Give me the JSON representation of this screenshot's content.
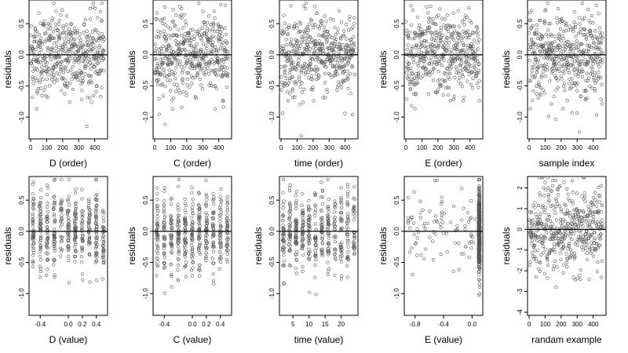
{
  "figure": {
    "background": "#ffffff",
    "point_color": "#555555",
    "axis_color": "#000000"
  },
  "chart_data": [
    {
      "type": "scatter",
      "id": "p0",
      "row": 0,
      "col": 0,
      "xlabel": "D (order)",
      "ylabel": "residuals",
      "xlim": [
        -10,
        480
      ],
      "ylim": [
        -1.35,
        0.88
      ],
      "xticks": [
        0,
        100,
        200,
        300,
        400
      ],
      "xtick_labels": [
        "0",
        "100",
        "200",
        "300",
        "400"
      ],
      "yticks": [
        0.5,
        0,
        -0.5,
        -1
      ],
      "ytick_labels": [
        "0.5",
        "0.0",
        "-0.5",
        "-1.0"
      ],
      "hline": 0,
      "n": 460,
      "x_kind": "index",
      "y_spread": 0.33,
      "points_note": "dense scatter of ~460 residuals around zero"
    },
    {
      "type": "scatter",
      "id": "p1",
      "row": 0,
      "col": 1,
      "xlabel": "C (order)",
      "ylabel": "residuals",
      "xlim": [
        -10,
        480
      ],
      "ylim": [
        -1.35,
        0.88
      ],
      "xticks": [
        0,
        100,
        200,
        300,
        400
      ],
      "xtick_labels": [
        "0",
        "100",
        "200",
        "300",
        "400"
      ],
      "yticks": [
        0.5,
        0,
        -0.5,
        -1
      ],
      "ytick_labels": [
        "0.5",
        "0.0",
        "-0.5",
        "-1.0"
      ],
      "hline": 0,
      "n": 460,
      "x_kind": "index",
      "y_spread": 0.33
    },
    {
      "type": "scatter",
      "id": "p2",
      "row": 0,
      "col": 2,
      "xlabel": "time (order)",
      "ylabel": "residuals",
      "xlim": [
        -10,
        480
      ],
      "ylim": [
        -1.35,
        0.88
      ],
      "xticks": [
        0,
        100,
        200,
        300,
        400
      ],
      "xtick_labels": [
        "0",
        "100",
        "200",
        "300",
        "400"
      ],
      "yticks": [
        0.5,
        0,
        -0.5,
        -1
      ],
      "ytick_labels": [
        "0.5",
        "0.0",
        "-0.5",
        "-1.0"
      ],
      "hline": 0,
      "n": 460,
      "x_kind": "index",
      "y_spread": 0.33
    },
    {
      "type": "scatter",
      "id": "p3",
      "row": 0,
      "col": 3,
      "xlabel": "E (order)",
      "ylabel": "residuals",
      "xlim": [
        -10,
        480
      ],
      "ylim": [
        -1.35,
        0.88
      ],
      "xticks": [
        0,
        100,
        200,
        300,
        400
      ],
      "xtick_labels": [
        "0",
        "100",
        "200",
        "300",
        "400"
      ],
      "yticks": [
        0.5,
        0,
        -0.5,
        -1
      ],
      "ytick_labels": [
        "0.5",
        "0.0",
        "-0.5",
        "-1.0"
      ],
      "hline": 0,
      "n": 460,
      "x_kind": "index",
      "y_spread": 0.33
    },
    {
      "type": "scatter",
      "id": "p4",
      "row": 0,
      "col": 4,
      "xlabel": "sample index",
      "ylabel": "residuals",
      "xlim": [
        -10,
        480
      ],
      "ylim": [
        -1.35,
        0.88
      ],
      "xticks": [
        0,
        100,
        200,
        300,
        400
      ],
      "xtick_labels": [
        "0",
        "100",
        "200",
        "300",
        "400"
      ],
      "yticks": [
        0.5,
        0,
        -0.5,
        -1
      ],
      "ytick_labels": [
        "0.5",
        "0.0",
        "-0.5",
        "-1.0"
      ],
      "hline": 0,
      "n": 460,
      "x_kind": "index",
      "y_spread": 0.33
    },
    {
      "type": "scatter",
      "id": "p5",
      "row": 1,
      "col": 0,
      "xlabel": "D (value)",
      "ylabel": "residuals",
      "xlim": [
        -0.56,
        0.56
      ],
      "ylim": [
        -1.35,
        0.88
      ],
      "xticks": [
        -0.4,
        0,
        0.2,
        0.4
      ],
      "xtick_labels": [
        "-0.4",
        "0.0",
        "0.2",
        "0.4"
      ],
      "yticks": [
        0.5,
        0,
        -0.5,
        -1
      ],
      "ytick_labels": [
        "0.5",
        "0.0",
        "-0.5",
        "-1.0"
      ],
      "hline": 0,
      "n": 460,
      "x_kind": "discrete",
      "x_levels": [
        -0.5,
        -0.4,
        -0.3,
        -0.2,
        -0.1,
        0.0,
        0.1,
        0.2,
        0.3,
        0.4,
        0.5
      ],
      "y_spread": 0.33
    },
    {
      "type": "scatter",
      "id": "p6",
      "row": 1,
      "col": 1,
      "xlabel": "C (value)",
      "ylabel": "residuals",
      "xlim": [
        -0.56,
        0.56
      ],
      "ylim": [
        -1.35,
        0.88
      ],
      "xticks": [
        -0.4,
        0,
        0.2,
        0.4
      ],
      "xtick_labels": [
        "-0.4",
        "0.0",
        "0.2",
        "0.4"
      ],
      "yticks": [
        0.5,
        0,
        -0.5,
        -1
      ],
      "ytick_labels": [
        "0.5",
        "0.0",
        "-0.5",
        "-1.0"
      ],
      "hline": 0,
      "n": 460,
      "x_kind": "discrete",
      "x_levels": [
        -0.5,
        -0.4,
        -0.3,
        -0.2,
        -0.1,
        0.0,
        0.1,
        0.2,
        0.3,
        0.4,
        0.5
      ],
      "y_spread": 0.33
    },
    {
      "type": "scatter",
      "id": "p7",
      "row": 1,
      "col": 2,
      "xlabel": "time (value)",
      "ylabel": "residuals",
      "xlim": [
        0.8,
        25.2
      ],
      "ylim": [
        -1.35,
        0.88
      ],
      "xticks": [
        5,
        10,
        15,
        20
      ],
      "xtick_labels": [
        "5",
        "10",
        "15",
        "20"
      ],
      "yticks": [
        0.5,
        0,
        -0.5,
        -1
      ],
      "ytick_labels": [
        "0.5",
        "0.0",
        "-0.5",
        "-1.0"
      ],
      "hline": 0,
      "n": 460,
      "x_kind": "discrete",
      "x_levels": [
        2,
        4,
        6,
        8,
        10,
        12,
        14,
        16,
        18,
        20,
        22,
        24
      ],
      "y_spread": 0.33
    },
    {
      "type": "scatter",
      "id": "p8",
      "row": 1,
      "col": 3,
      "xlabel": "E (value)",
      "ylabel": "residuals",
      "xlim": [
        -0.95,
        0.15
      ],
      "ylim": [
        -1.35,
        0.88
      ],
      "xticks": [
        -0.8,
        -0.4,
        0
      ],
      "xtick_labels": [
        "-0.8",
        "-0.4",
        "0.0"
      ],
      "yticks": [
        0.5,
        0,
        -0.5,
        -1
      ],
      "ytick_labels": [
        "0.5",
        "0.0",
        "-0.5",
        "-1.0"
      ],
      "hline": 0,
      "n": 460,
      "x_kind": "skewed",
      "y_spread": 0.33,
      "points_note": "most points stacked near E = 0.1, sparse points to the left"
    },
    {
      "type": "scatter",
      "id": "p9",
      "row": 1,
      "col": 4,
      "xlabel": "randam example",
      "ylabel": "residuals",
      "xlim": [
        -10,
        480
      ],
      "ylim": [
        -4.15,
        2.55
      ],
      "xticks": [
        0,
        100,
        200,
        300,
        400
      ],
      "xtick_labels": [
        "0",
        "100",
        "200",
        "300",
        "400"
      ],
      "yticks": [
        2,
        1,
        0,
        -1,
        -2,
        -3,
        -4
      ],
      "ytick_labels": [
        "2",
        "1",
        "0",
        "-1",
        "-2",
        "-3",
        "-4"
      ],
      "hline": 0,
      "n": 460,
      "x_kind": "index",
      "y_spread": 1.0
    }
  ]
}
